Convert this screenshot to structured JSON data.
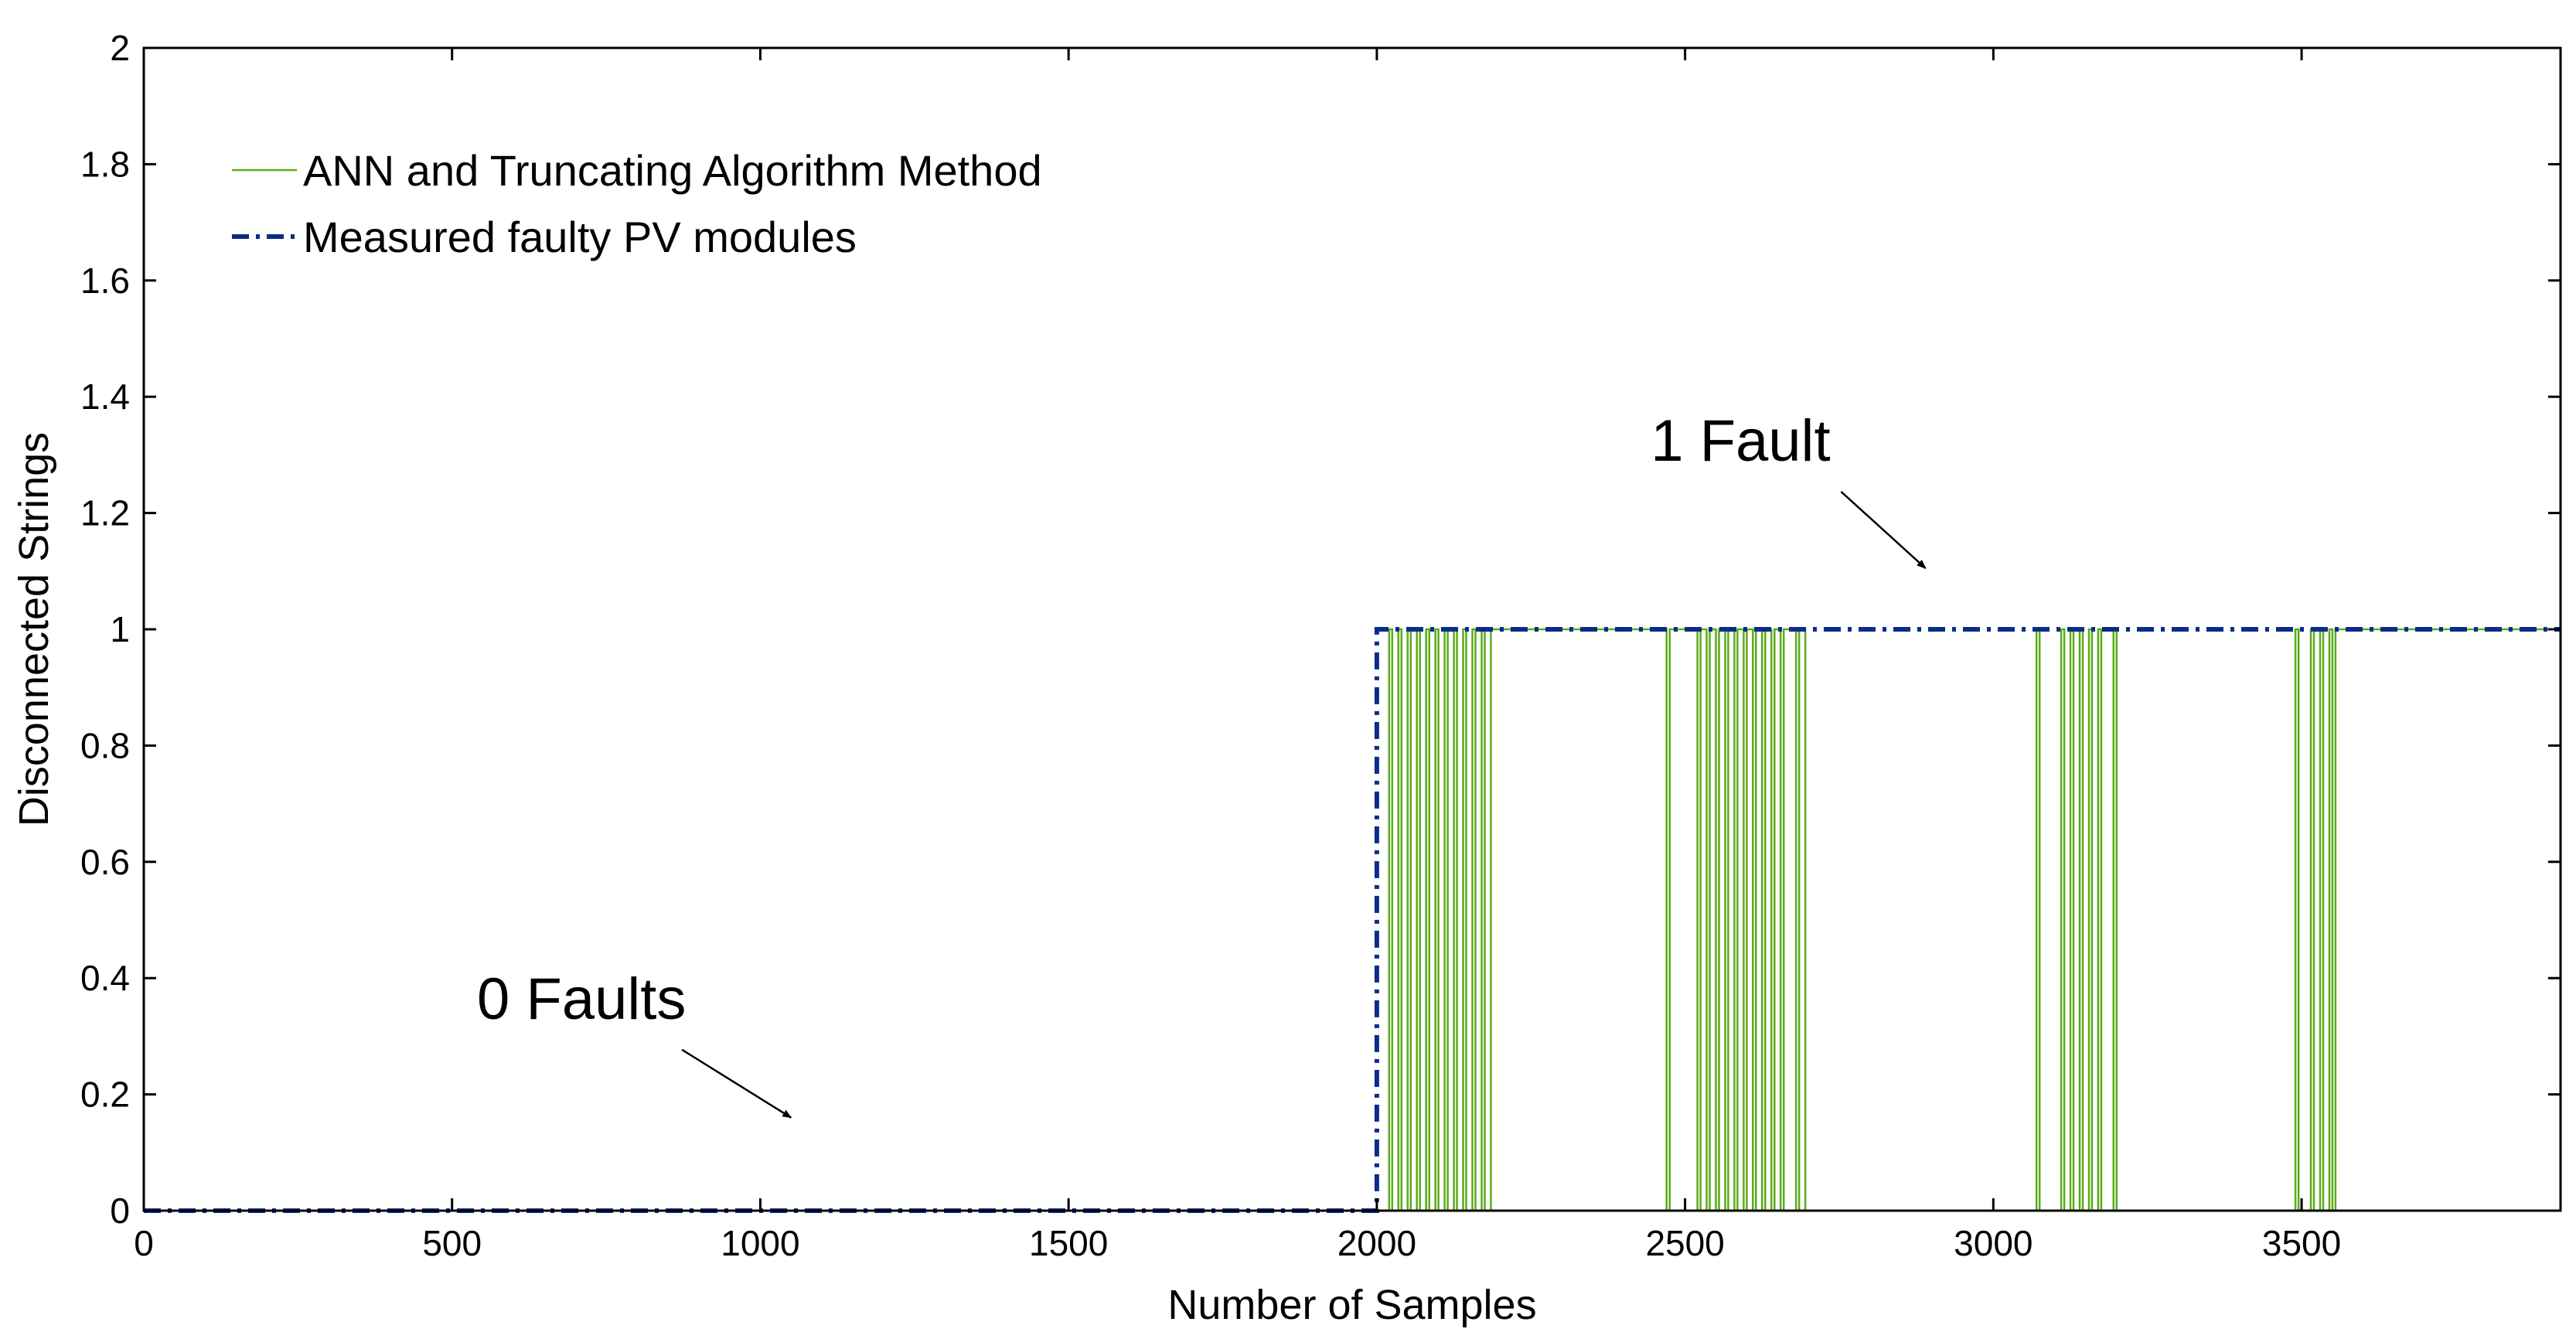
{
  "chart_data": {
    "type": "line",
    "title": "",
    "xlabel": "Number of Samples",
    "ylabel": "Disconnected Strings",
    "xlim": [
      0,
      3920
    ],
    "ylim": [
      0,
      2
    ],
    "xticks": [
      0,
      500,
      1000,
      1500,
      2000,
      2500,
      3000,
      3500
    ],
    "xtick_labels": [
      "0",
      "500",
      "1000",
      "1500",
      "2000",
      "2500",
      "3000",
      "3500"
    ],
    "yticks": [
      0,
      0.2,
      0.4,
      0.6,
      0.8,
      1,
      1.2,
      1.4,
      1.6,
      1.8,
      2
    ],
    "ytick_labels": [
      "0",
      "0.2",
      "0.4",
      "0.6",
      "0.8",
      "1",
      "1.2",
      "1.4",
      "1.6",
      "1.8",
      "2"
    ],
    "grid": false,
    "legend_position": "top-left",
    "series": [
      {
        "name": "ANN and Truncating Algorithm Method",
        "color": "#5aab18",
        "style": "solid",
        "x": [
          0,
          2020,
          2020,
          2025,
          2025,
          2035,
          2035,
          2040,
          2040,
          2050,
          2050,
          2055,
          2055,
          2065,
          2065,
          2070,
          2070,
          2080,
          2080,
          2085,
          2085,
          2095,
          2095,
          2100,
          2100,
          2110,
          2110,
          2115,
          2115,
          2125,
          2125,
          2130,
          2130,
          2140,
          2140,
          2145,
          2145,
          2155,
          2155,
          2160,
          2160,
          2170,
          2170,
          2175,
          2175,
          2185,
          2185,
          2470,
          2470,
          2475,
          2475,
          2520,
          2520,
          2525,
          2525,
          2535,
          2535,
          2540,
          2540,
          2550,
          2550,
          2555,
          2555,
          2565,
          2565,
          2570,
          2570,
          2580,
          2580,
          2585,
          2585,
          2595,
          2595,
          2600,
          2600,
          2610,
          2610,
          2615,
          2615,
          2625,
          2625,
          2630,
          2630,
          2640,
          2640,
          2645,
          2645,
          2655,
          2655,
          2660,
          2660,
          2680,
          2680,
          2685,
          2685,
          2695,
          2695,
          3070,
          3070,
          3075,
          3075,
          3110,
          3110,
          3115,
          3115,
          3125,
          3125,
          3130,
          3130,
          3140,
          3140,
          3145,
          3145,
          3155,
          3155,
          3160,
          3160,
          3170,
          3170,
          3175,
          3175,
          3195,
          3195,
          3200,
          3200,
          3490,
          3490,
          3495,
          3495,
          3515,
          3515,
          3520,
          3520,
          3530,
          3530,
          3535,
          3535,
          3545,
          3545,
          3550,
          3550,
          3555,
          3555,
          3920
        ],
        "y": [
          0,
          0,
          1,
          1,
          0,
          0,
          1,
          1,
          0,
          0,
          1,
          1,
          0,
          0,
          1,
          1,
          0,
          0,
          1,
          1,
          0,
          0,
          1,
          1,
          0,
          0,
          1,
          1,
          0,
          0,
          1,
          1,
          0,
          0,
          1,
          1,
          0,
          0,
          1,
          1,
          0,
          0,
          1,
          1,
          0,
          0,
          1,
          1,
          0,
          0,
          1,
          1,
          0,
          0,
          1,
          1,
          0,
          0,
          1,
          1,
          0,
          0,
          1,
          1,
          0,
          0,
          1,
          1,
          0,
          0,
          1,
          1,
          0,
          0,
          1,
          1,
          0,
          0,
          1,
          1,
          0,
          0,
          1,
          1,
          0,
          0,
          1,
          1,
          0,
          0,
          1,
          1,
          0,
          0,
          1,
          1,
          0,
          0,
          1,
          1,
          0,
          0,
          1,
          1,
          0,
          0,
          1,
          1,
          0,
          0,
          1,
          1,
          0,
          0,
          1,
          1,
          0,
          0,
          1,
          1,
          0,
          0,
          1,
          1,
          0,
          0,
          1,
          1,
          0,
          0,
          1,
          1,
          0,
          0,
          1,
          1,
          0,
          0,
          1,
          1,
          0,
          0,
          1,
          1
        ]
      },
      {
        "name": "Measured faulty PV modules",
        "color": "#0c2c8c",
        "style": "dashdot",
        "x": [
          0,
          2000,
          2000,
          3920
        ],
        "y": [
          0,
          0,
          1,
          1
        ]
      }
    ],
    "annotations": [
      {
        "text": "1 Fault",
        "x": 2590,
        "y": 1.29,
        "arrow_to": [
          2890,
          1.105
        ]
      },
      {
        "text": "0 Faults",
        "x": 710,
        "y": 0.33,
        "arrow_to": [
          1050,
          0.16
        ]
      }
    ]
  }
}
